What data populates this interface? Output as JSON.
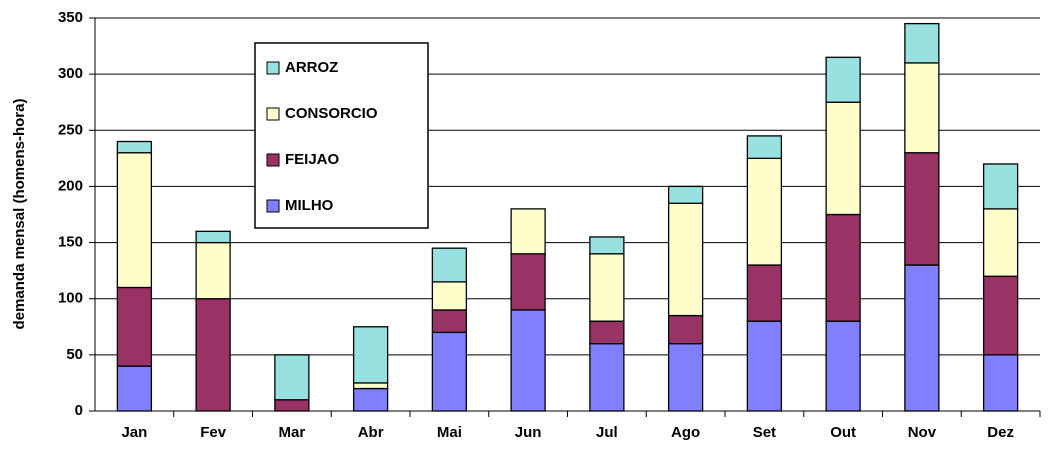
{
  "chart_data": {
    "type": "stacked_bar",
    "y_label": "demanda mensal (homens-hora)",
    "categories": [
      "Jan",
      "Fev",
      "Mar",
      "Abr",
      "Mai",
      "Jun",
      "Jul",
      "Ago",
      "Set",
      "Out",
      "Nov",
      "Dez"
    ],
    "series": [
      {
        "name": "MILHO",
        "color": "#8080ff",
        "values": [
          40,
          0,
          0,
          20,
          70,
          90,
          60,
          60,
          80,
          80,
          130,
          50
        ]
      },
      {
        "name": "FEIJAO",
        "color": "#993366",
        "values": [
          70,
          100,
          10,
          0,
          20,
          50,
          20,
          25,
          50,
          95,
          100,
          70
        ]
      },
      {
        "name": "CONSORCIO",
        "color": "#ffffcc",
        "values": [
          120,
          50,
          0,
          5,
          25,
          40,
          60,
          100,
          95,
          100,
          80,
          60
        ]
      },
      {
        "name": "ARROZ",
        "color": "#99e0e0",
        "values": [
          10,
          10,
          40,
          50,
          30,
          0,
          15,
          15,
          20,
          40,
          35,
          40
        ]
      }
    ],
    "ylim": [
      0,
      350
    ],
    "yticks": [
      0,
      50,
      100,
      150,
      200,
      250,
      300,
      350
    ],
    "grid": true,
    "legend": "upper left"
  }
}
